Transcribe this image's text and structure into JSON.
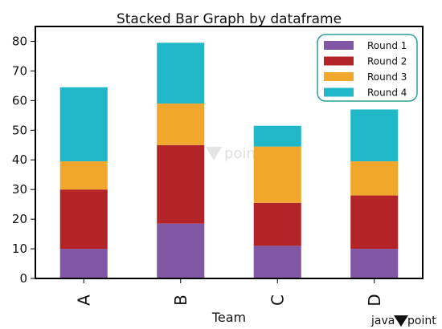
{
  "chart_data": {
    "type": "bar",
    "stacked": true,
    "title": "Stacked Bar Graph by dataframe",
    "xlabel": "Team",
    "ylabel": "",
    "categories": [
      "A",
      "B",
      "C",
      "D"
    ],
    "series": [
      {
        "name": "Round 1",
        "color": "#8157a5",
        "values": [
          10,
          18.5,
          11,
          10
        ]
      },
      {
        "name": "Round 2",
        "color": "#b22427",
        "values": [
          20,
          26.5,
          14.5,
          18
        ]
      },
      {
        "name": "Round 3",
        "color": "#f1a72b",
        "values": [
          9.5,
          14,
          19,
          11.5
        ]
      },
      {
        "name": "Round 4",
        "color": "#20b8c8",
        "values": [
          25,
          20.5,
          7,
          17.5
        ]
      }
    ],
    "ylim": [
      0,
      85
    ],
    "yticks": [
      0,
      10,
      20,
      30,
      40,
      50,
      60,
      70,
      80
    ],
    "grid": false,
    "legend_position": "top-right",
    "legend_border_color": "#2aa198"
  },
  "watermark": {
    "text": "point"
  },
  "brand": {
    "prefix": "java",
    "suffix": "point",
    "icon": "javatpoint-t-logo"
  }
}
